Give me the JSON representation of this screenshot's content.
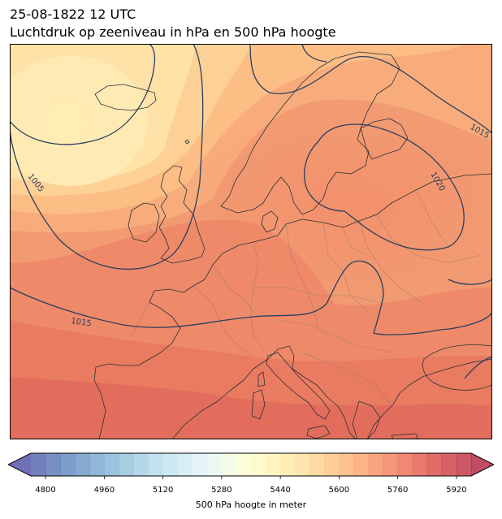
{
  "title": {
    "datetime": "25-08-1822 12 UTC",
    "subtitle": "Luchtdruk op zeeniveau in hPa en 500 hPa hoogte"
  },
  "isobars": [
    {
      "value": 1005,
      "label": "1005"
    },
    {
      "value": 1015,
      "label": "1015"
    },
    {
      "value": 1015,
      "label": "1015"
    },
    {
      "value": 1020,
      "label": "1020"
    }
  ],
  "colorbar": {
    "label": "500 hPa hoogte in meter",
    "min": 4760,
    "max": 5960,
    "step": 40,
    "extend": "both",
    "ticks": [
      4800,
      4960,
      5120,
      5280,
      5440,
      5600,
      5760,
      5920
    ],
    "colormap": "RdYlBu_r"
  },
  "colors": {
    "isobar_line": "#2b3f5e",
    "coastline": "#2c3036",
    "border_line": "#8a7a6a"
  }
}
